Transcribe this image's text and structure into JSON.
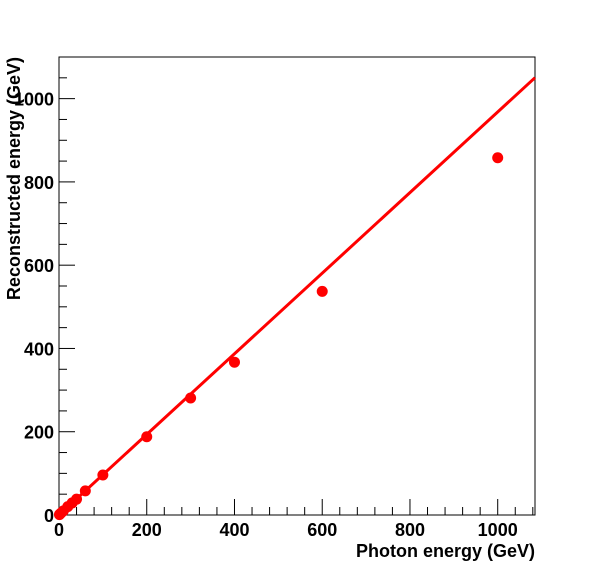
{
  "chart_data": {
    "type": "scatter",
    "title": "",
    "xlabel": "Photon energy (GeV)",
    "ylabel": "Reconstructed energy (GeV)",
    "xlim": [
      0,
      1085
    ],
    "ylim": [
      0,
      1100
    ],
    "x_ticks": [
      "0",
      "200",
      "400",
      "600",
      "800",
      "1000"
    ],
    "y_ticks": [
      "0",
      "200",
      "400",
      "600",
      "800",
      "1000"
    ],
    "grid": false,
    "legend": "none",
    "series": [
      {
        "marker_color": "#ff0000",
        "points": [
          {
            "x": 1,
            "y": 1
          },
          {
            "x": 2,
            "y": 2
          },
          {
            "x": 5,
            "y": 5
          },
          {
            "x": 10,
            "y": 10
          },
          {
            "x": 20,
            "y": 20
          },
          {
            "x": 30,
            "y": 29
          },
          {
            "x": 40,
            "y": 38
          },
          {
            "x": 60,
            "y": 58
          },
          {
            "x": 100,
            "y": 96
          },
          {
            "x": 200,
            "y": 188
          },
          {
            "x": 300,
            "y": 281
          },
          {
            "x": 400,
            "y": 367
          },
          {
            "x": 600,
            "y": 537
          },
          {
            "x": 1000,
            "y": 858
          }
        ]
      }
    ],
    "fit_line": {
      "color": "#ff0000",
      "slope": 0.968,
      "intercept": 0,
      "x_range": [
        0,
        1085
      ]
    }
  }
}
